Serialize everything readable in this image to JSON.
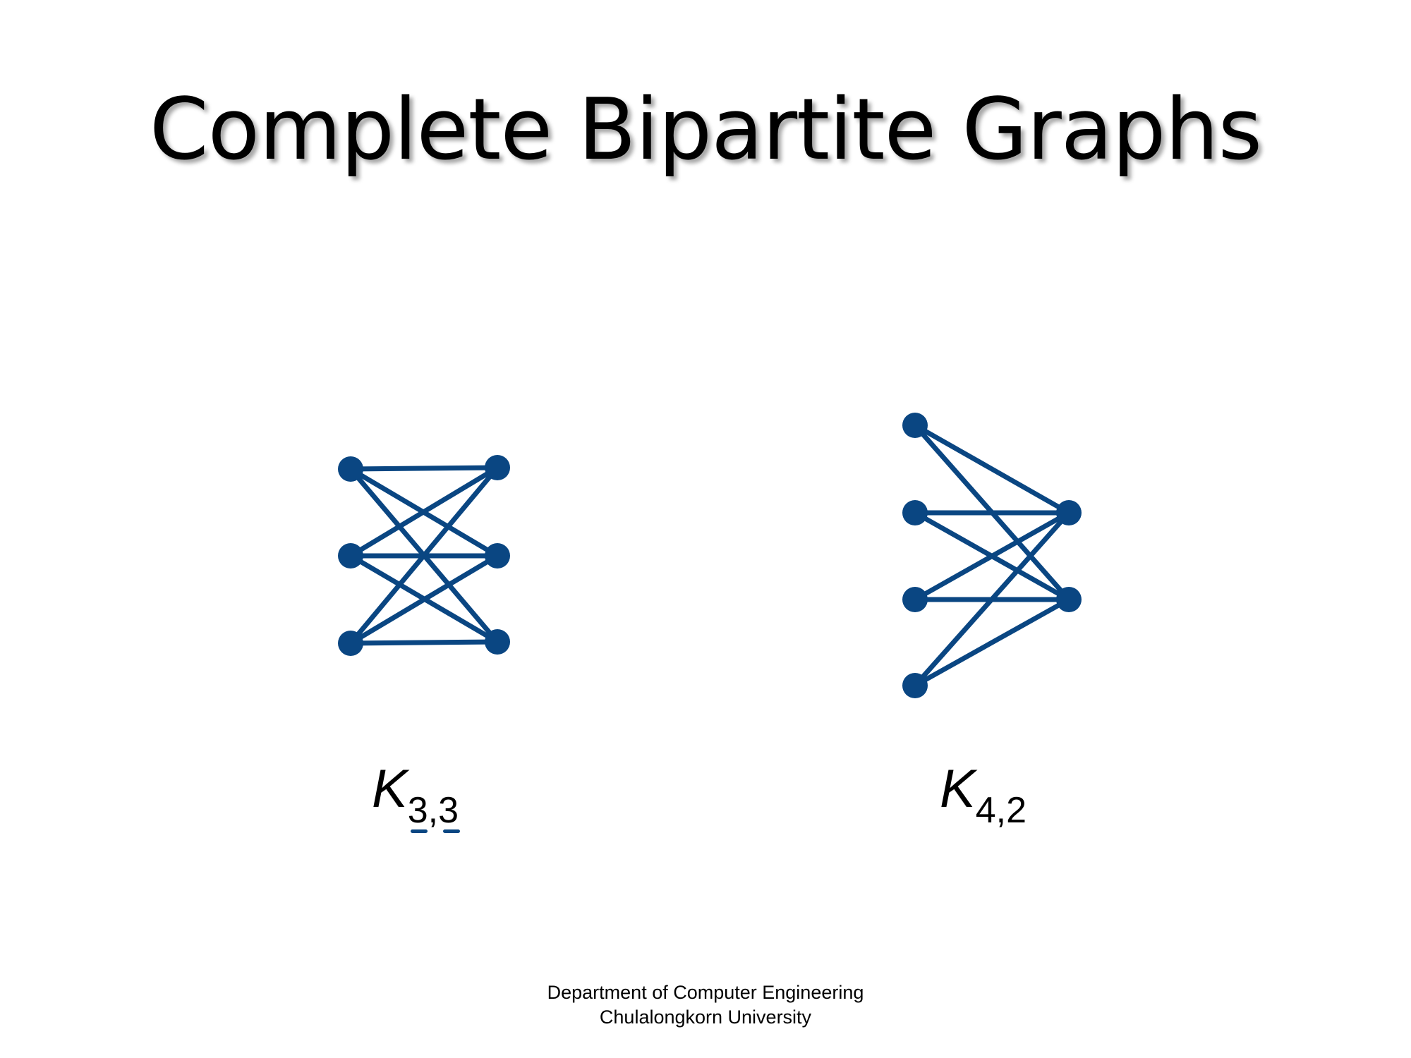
{
  "title": "Complete Bipartite Graphs",
  "colors": {
    "graph": "#0a4682",
    "text": "#000000",
    "background": "#ffffff"
  },
  "graphs": [
    {
      "name": "K3,3",
      "label_main": "K",
      "label_sub": "3,3",
      "left_part_size": 3,
      "right_part_size": 3,
      "complete": true
    },
    {
      "name": "K4,2",
      "label_main": "K",
      "label_sub": "4,2",
      "left_part_size": 4,
      "right_part_size": 2,
      "complete": true
    }
  ],
  "footer": {
    "line1": "Department of Computer Engineering",
    "line2": "Chulalongkorn University"
  }
}
